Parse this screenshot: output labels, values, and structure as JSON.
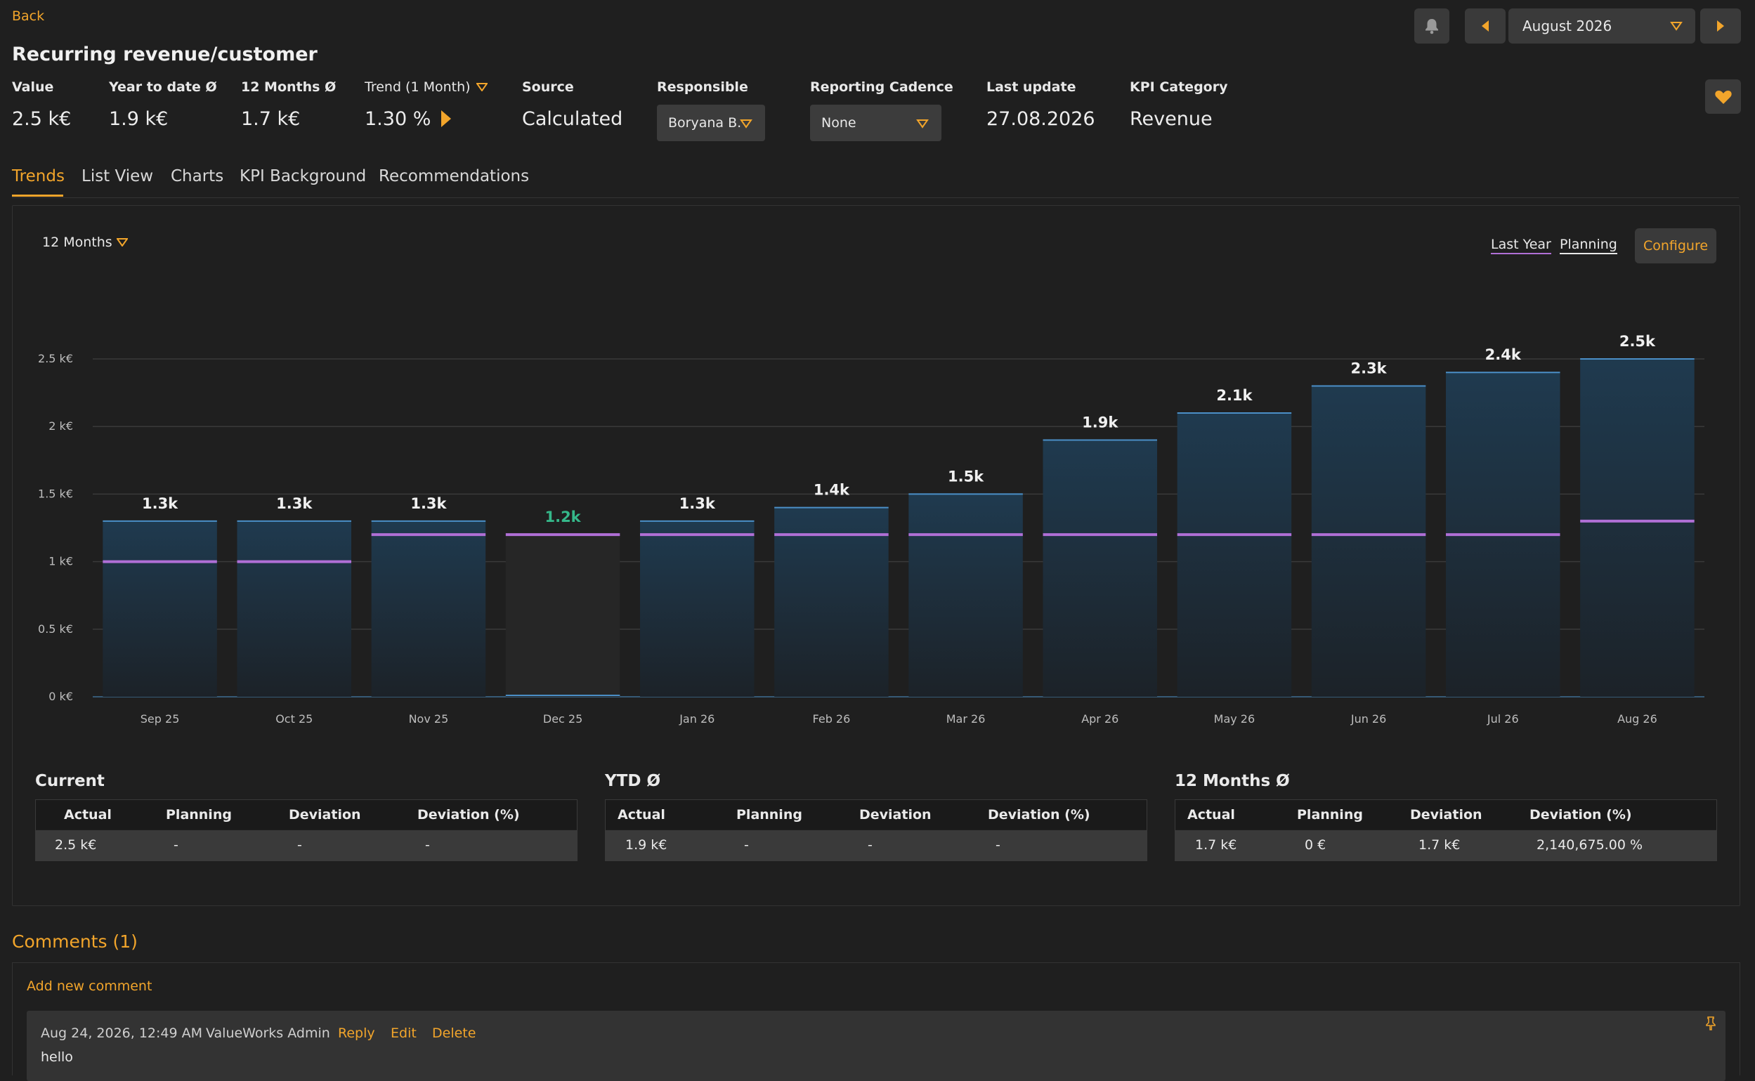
{
  "header": {
    "back_label": "Back",
    "title": "Recurring revenue/customer",
    "period": "August 2026",
    "icons": {
      "bell": "bell-icon",
      "prev": "caret-left-icon",
      "next": "caret-right-icon",
      "favorite": "heart-icon"
    }
  },
  "kpis": {
    "value": {
      "label": "Value",
      "value": "2.5 k€"
    },
    "ytd": {
      "label": "Year to date Ø",
      "value": "1.9 k€"
    },
    "m12": {
      "label": "12 Months Ø",
      "value": "1.7 k€"
    },
    "trend": {
      "label": "Trend (1 Month)",
      "value": "1.30 %"
    },
    "source": {
      "label": "Source",
      "value": "Calculated"
    },
    "responsible": {
      "label": "Responsible",
      "value": "Boryana B."
    },
    "cadence": {
      "label": "Reporting Cadence",
      "value": "None"
    },
    "last_update": {
      "label": "Last update",
      "value": "27.08.2026"
    },
    "category": {
      "label": "KPI Category",
      "value": "Revenue"
    }
  },
  "tabs": [
    "Trends",
    "List View",
    "Charts",
    "KPI Background",
    "Recommendations"
  ],
  "chart_controls": {
    "range": "12 Months",
    "last_year": "Last Year",
    "planning": "Planning",
    "configure": "Configure"
  },
  "chart_data": {
    "type": "bar",
    "categories": [
      "Sep 25",
      "Oct 25",
      "Nov 25",
      "Dec 25",
      "Jan 26",
      "Feb 26",
      "Mar 26",
      "Apr 26",
      "May 26",
      "Jun 26",
      "Jul 26",
      "Aug 26"
    ],
    "series": [
      {
        "values": [
          1.3,
          1.3,
          1.3,
          1.2,
          1.3,
          1.4,
          1.5,
          1.9,
          2.1,
          2.3,
          2.4,
          2.5
        ]
      },
      {
        "values": [
          1.0,
          1.0,
          1.2,
          1.2,
          1.2,
          1.2,
          1.2,
          1.2,
          1.2,
          1.2,
          1.2,
          1.3
        ]
      }
    ],
    "data_labels": [
      "1.3k",
      "1.3k",
      "1.3k",
      "1.2k",
      "1.3k",
      "1.4k",
      "1.5k",
      "1.9k",
      "2.1k",
      "2.3k",
      "2.4k",
      "2.5k"
    ],
    "highlight_index": 3,
    "yticks": [
      "0 k€",
      "0.5 k€",
      "1 k€",
      "1.5 k€",
      "2 k€",
      "2.5 k€"
    ],
    "ylim": [
      0,
      2.5
    ],
    "grid": true,
    "colors": {
      "bar_top": "#1f3a4f",
      "bar_bottom": "#1c2228",
      "bar_edge": "#4b8fc7",
      "planning": "#b06fd6",
      "highlight_label": "#35b88a"
    }
  },
  "summary": {
    "headers": [
      "Actual",
      "Planning",
      "Deviation",
      "Deviation (%)"
    ],
    "current": {
      "title": "Current",
      "row": [
        "2.5 k€",
        "-",
        "-",
        "-"
      ]
    },
    "ytd": {
      "title": "YTD Ø",
      "row": [
        "1.9 k€",
        "-",
        "-",
        "-"
      ]
    },
    "m12": {
      "title": "12 Months Ø",
      "row": [
        "1.7 k€",
        "0 €",
        "1.7 k€",
        "2,140,675.00 %"
      ]
    }
  },
  "comments": {
    "title": "Comments (1)",
    "add_label": "Add new comment",
    "items": [
      {
        "date": "Aug 24, 2026, 12:49 AM",
        "author": "ValueWorks Admin",
        "reply": "Reply",
        "edit": "Edit",
        "delete": "Delete",
        "text": "hello"
      }
    ]
  }
}
